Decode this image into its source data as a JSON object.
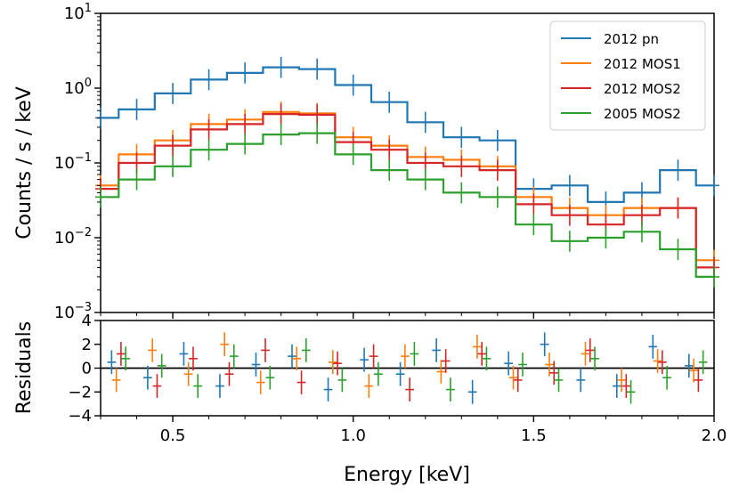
{
  "chart_data": [
    {
      "type": "line",
      "title": "",
      "xlabel": "",
      "ylabel": "Counts / s / keV",
      "xlim": [
        0.3,
        2.0
      ],
      "yscale": "log",
      "ylim": [
        0.001,
        10
      ],
      "ytick_labels": [
        "10^-3",
        "10^-2",
        "10^-1",
        "10^0",
        "10^1"
      ],
      "legend_position": "top-right",
      "x": [
        0.3,
        0.4,
        0.5,
        0.6,
        0.7,
        0.8,
        0.9,
        1.0,
        1.1,
        1.2,
        1.3,
        1.4,
        1.5,
        1.6,
        1.7,
        1.8,
        1.9,
        2.0
      ],
      "series": [
        {
          "name": "2012 pn",
          "color": "#1f77b4",
          "values": [
            0.4,
            0.52,
            0.85,
            1.3,
            1.6,
            1.9,
            1.8,
            1.1,
            0.65,
            0.35,
            0.22,
            0.2,
            0.045,
            0.05,
            0.03,
            0.04,
            0.08,
            0.05
          ]
        },
        {
          "name": "2012 MOS1",
          "color": "#ff7f0e",
          "values": [
            0.05,
            0.13,
            0.2,
            0.33,
            0.38,
            0.48,
            0.46,
            0.22,
            0.17,
            0.12,
            0.11,
            0.09,
            0.035,
            0.025,
            0.02,
            0.025,
            0.025,
            0.005
          ]
        },
        {
          "name": "2012 MOS2",
          "color": "#d62728",
          "values": [
            0.045,
            0.1,
            0.17,
            0.28,
            0.33,
            0.45,
            0.44,
            0.19,
            0.15,
            0.1,
            0.09,
            0.08,
            0.028,
            0.02,
            0.015,
            0.02,
            0.025,
            0.004
          ]
        },
        {
          "name": "2005 MOS2",
          "color": "#2ca02c",
          "values": [
            0.035,
            0.06,
            0.09,
            0.15,
            0.18,
            0.24,
            0.25,
            0.13,
            0.08,
            0.06,
            0.04,
            0.035,
            0.015,
            0.009,
            0.01,
            0.012,
            0.007,
            0.003
          ]
        }
      ]
    },
    {
      "type": "scatter",
      "title": "",
      "xlabel": "Energy [keV]",
      "ylabel": "Residuals",
      "xlim": [
        0.3,
        2.0
      ],
      "ylim": [
        -4,
        4
      ],
      "xticks": [
        0.5,
        1.0,
        1.5,
        2.0
      ],
      "xtick_labels": [
        "0.5",
        "1.0",
        "1.5",
        "2.0"
      ],
      "yticks": [
        -4,
        -2,
        0,
        2,
        4
      ],
      "ytick_labels": [
        "−4",
        "−2",
        "0",
        "2",
        "4"
      ],
      "x": [
        0.35,
        0.45,
        0.55,
        0.65,
        0.75,
        0.85,
        0.95,
        1.05,
        1.15,
        1.25,
        1.35,
        1.45,
        1.55,
        1.65,
        1.75,
        1.85,
        1.95
      ],
      "series": [
        {
          "name": "2012 pn",
          "values": [
            0.5,
            -0.8,
            1.2,
            -1.5,
            0.3,
            1.0,
            -1.8,
            0.7,
            -0.5,
            1.5,
            -2.0,
            0.4,
            2.0,
            -1.0,
            -1.5,
            1.8,
            0.2
          ]
        },
        {
          "name": "2012 MOS1",
          "values": [
            -1.0,
            1.5,
            -0.5,
            2.0,
            -1.2,
            0.8,
            0.5,
            -1.5,
            1.0,
            -0.3,
            1.8,
            -0.8,
            0.3,
            1.2,
            -1.0,
            0.6,
            -0.2
          ]
        },
        {
          "name": "2012 MOS2",
          "values": [
            1.2,
            -1.5,
            0.8,
            -0.5,
            1.5,
            -1.2,
            0.4,
            1.0,
            -1.8,
            0.6,
            1.2,
            -1.0,
            -0.4,
            1.5,
            -1.5,
            0.5,
            -1.0
          ]
        },
        {
          "name": "2005 MOS2",
          "values": [
            0.8,
            0.2,
            -1.5,
            1.0,
            -0.8,
            1.5,
            -1.0,
            -0.5,
            1.2,
            -1.8,
            0.8,
            0.3,
            -1.0,
            0.8,
            -2.0,
            -0.8,
            0.5
          ]
        }
      ]
    }
  ]
}
